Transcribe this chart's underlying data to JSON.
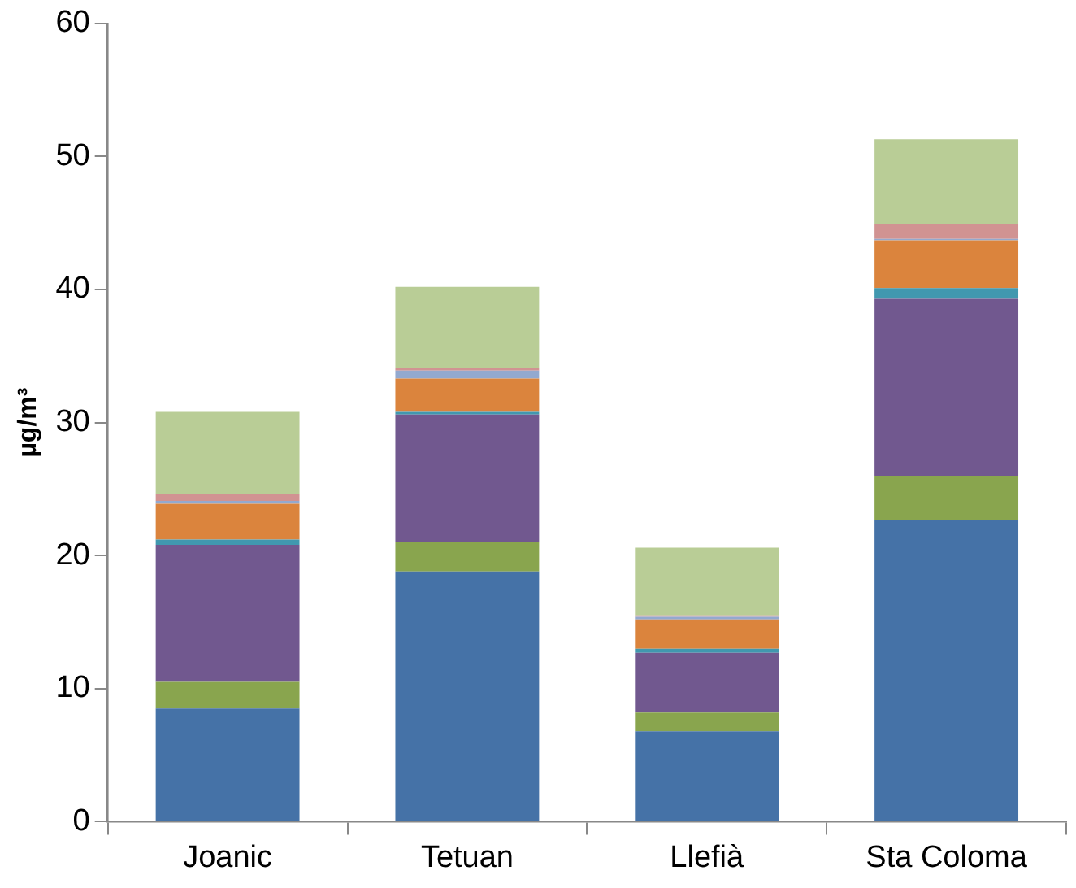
{
  "chart_data": {
    "type": "bar",
    "stacked": true,
    "ylabel": "µg/m³",
    "categories": [
      "Joanic",
      "Tetuan",
      "Llefià",
      "Sta Coloma"
    ],
    "ylim": [
      0,
      60
    ],
    "yticks": [
      0,
      10,
      20,
      30,
      40,
      50,
      60
    ],
    "grid": false,
    "legend": false,
    "series": [
      {
        "color": "#4572a7",
        "values": [
          8.5,
          18.8,
          6.8,
          22.7
        ]
      },
      {
        "color": "#89a54e",
        "values": [
          2.0,
          2.2,
          1.4,
          3.3
        ]
      },
      {
        "color": "#71588f",
        "values": [
          10.3,
          9.6,
          4.5,
          13.3
        ]
      },
      {
        "color": "#4198af",
        "values": [
          0.4,
          0.2,
          0.3,
          0.8
        ]
      },
      {
        "color": "#db843d",
        "values": [
          2.7,
          2.5,
          2.2,
          3.6
        ]
      },
      {
        "color": "#93a9cf",
        "values": [
          0.2,
          0.6,
          0.2,
          0.1
        ]
      },
      {
        "color": "#d19392",
        "values": [
          0.5,
          0.2,
          0.1,
          1.1
        ]
      },
      {
        "color": "#b9cd96",
        "values": [
          6.2,
          6.1,
          5.1,
          6.4
        ]
      }
    ]
  }
}
